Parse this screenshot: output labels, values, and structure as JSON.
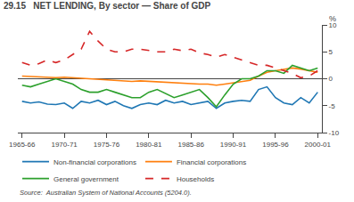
{
  "chart_data": {
    "type": "line",
    "title": "29.15   NET LENDING, By sector — Share of GDP",
    "source": "Source:  Australian System of National Accounts (5204.0).",
    "ylabel": "%",
    "categories": [
      "1965-66",
      null,
      null,
      null,
      null,
      "1970-71",
      null,
      null,
      null,
      null,
      "1975-76",
      null,
      null,
      null,
      null,
      "1980-81",
      null,
      null,
      null,
      null,
      "1985-86",
      null,
      null,
      null,
      null,
      "1990-91",
      null,
      null,
      null,
      null,
      "1995-96",
      null,
      null,
      null,
      null,
      "2000-01"
    ],
    "series": [
      {
        "name": "Non-financial corporations",
        "values": [
          -4.2,
          -4.5,
          -4.3,
          -4.7,
          -4.8,
          -4.5,
          -5.5,
          -4.2,
          -4.5,
          -4.0,
          -4.8,
          -4.2,
          -5.0,
          -5.5,
          -4.8,
          -4.5,
          -4.8,
          -4.0,
          -4.5,
          -4.2,
          -4.8,
          -4.5,
          -4.2,
          -5.5,
          -4.5,
          -4.2,
          -4.0,
          -4.2,
          -2.0,
          -1.5,
          -3.5,
          -4.5,
          -4.8,
          -3.5,
          -4.5,
          -2.5
        ]
      },
      {
        "name": "Financial corporations",
        "values": [
          0.5,
          0.4,
          0.3,
          0.3,
          0.2,
          0.3,
          0.2,
          0.1,
          0.0,
          0.0,
          -0.2,
          -0.3,
          -0.4,
          -0.5,
          -0.4,
          -0.5,
          -0.5,
          -0.6,
          -0.8,
          -0.8,
          -0.9,
          -1.0,
          -1.0,
          -1.2,
          -1.0,
          -0.8,
          -0.5,
          -0.3,
          0.5,
          1.2,
          1.5,
          1.8,
          2.0,
          1.8,
          1.5,
          1.2
        ]
      },
      {
        "name": "General government",
        "values": [
          -1.2,
          -1.5,
          -1.0,
          -0.5,
          0.0,
          -0.5,
          -1.0,
          -2.0,
          -2.5,
          -2.5,
          -2.0,
          -2.5,
          -3.0,
          -3.5,
          -3.5,
          -2.5,
          -2.0,
          -2.8,
          -3.5,
          -3.0,
          -2.5,
          -2.0,
          -3.5,
          -5.2,
          -3.0,
          -1.0,
          0.0,
          0.0,
          0.5,
          1.5,
          1.5,
          1.0,
          2.5,
          2.0,
          1.5,
          2.0
        ]
      },
      {
        "name": "Households",
        "line_style": "dashed",
        "values": [
          3.0,
          2.5,
          2.8,
          3.5,
          3.0,
          3.5,
          4.5,
          5.5,
          8.8,
          7.0,
          5.5,
          5.0,
          5.0,
          5.5,
          5.5,
          5.2,
          5.0,
          5.0,
          5.5,
          5.2,
          5.5,
          4.8,
          4.5,
          4.0,
          4.5,
          4.0,
          3.5,
          3.0,
          2.5,
          2.5,
          2.0,
          1.5,
          1.0,
          0.2,
          0.5,
          1.5
        ]
      }
    ],
    "ylim": [
      -10,
      10
    ],
    "yticks": [
      -10,
      -5,
      0,
      5,
      10
    ],
    "grid": false,
    "legend": "bottom"
  }
}
